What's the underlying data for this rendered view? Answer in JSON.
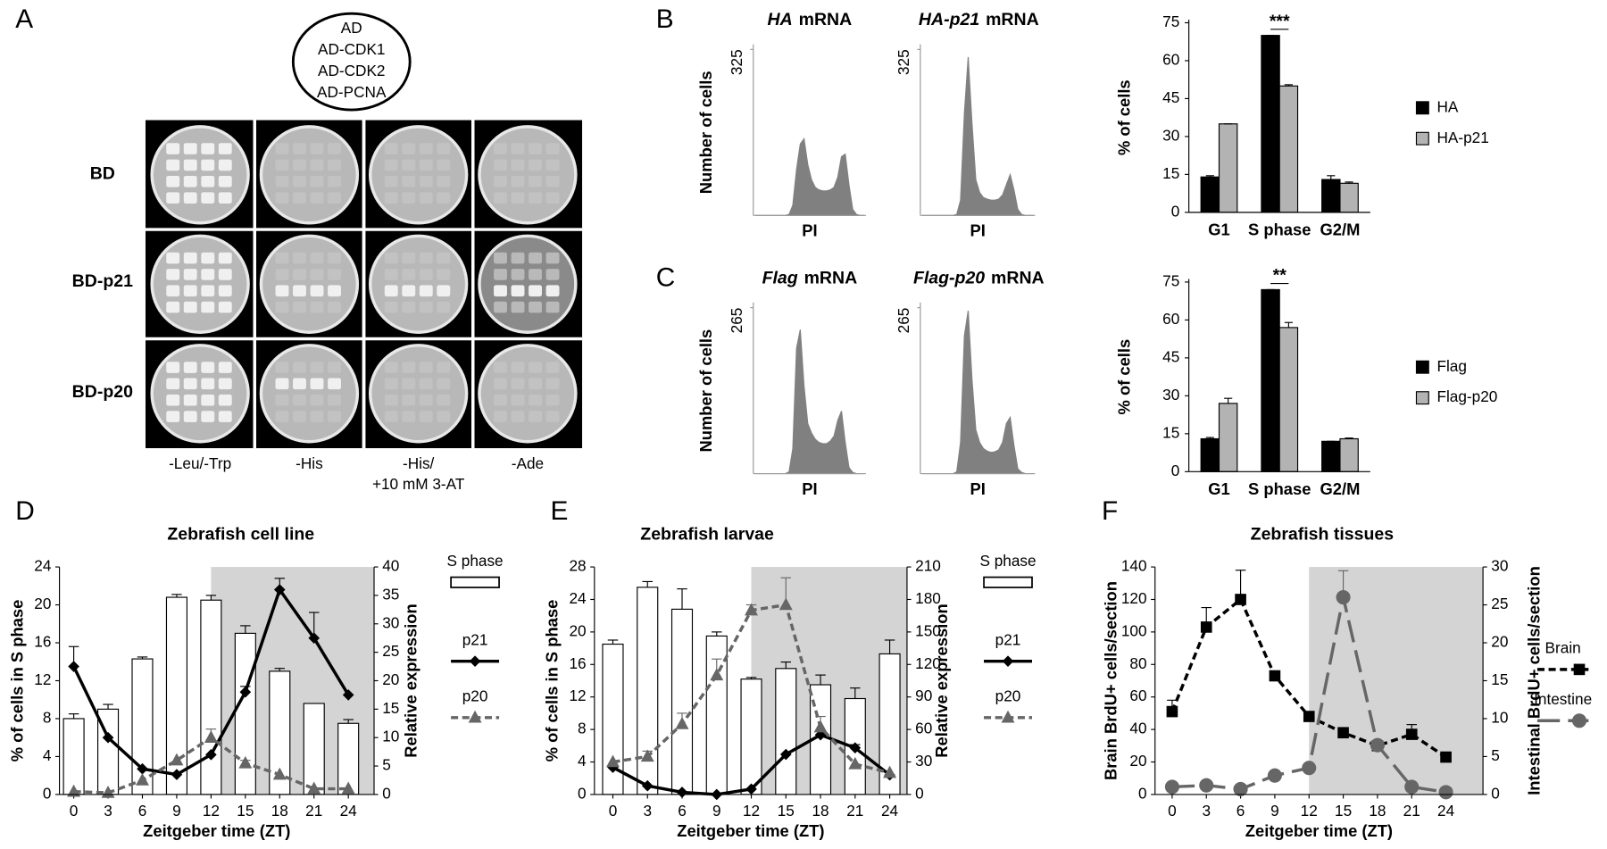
{
  "panel_labels": [
    "A",
    "B",
    "C",
    "D",
    "E",
    "F"
  ],
  "panel_a": {
    "ad_legend": [
      "AD",
      "AD-CDK1",
      "AD-CDK2",
      "AD-PCNA"
    ],
    "rows": [
      "BD",
      "BD-p21",
      "BD-p20"
    ],
    "columns": [
      [
        "-Leu/-Trp"
      ],
      [
        "-His"
      ],
      [
        "-His/",
        "+10 mM 3-AT"
      ],
      [
        "-Ade"
      ]
    ]
  },
  "chart_data": [
    {
      "type": "area",
      "title": [
        "HA",
        "mRNA"
      ],
      "ylabel": "Number of cells",
      "xlabel": "PI",
      "ylim": [
        0,
        325
      ],
      "yticks": [
        325
      ],
      "color": "#808080",
      "values": [
        0,
        0,
        0,
        0,
        0,
        0,
        0,
        0,
        0,
        2,
        20,
        90,
        140,
        150,
        100,
        70,
        55,
        50,
        48,
        48,
        50,
        55,
        75,
        115,
        120,
        60,
        12,
        2,
        0,
        0
      ]
    },
    {
      "type": "area",
      "title": [
        "HA-p21",
        "mRNA"
      ],
      "xlabel": "PI",
      "ylim": [
        0,
        325
      ],
      "yticks": [
        325
      ],
      "color": "#808080",
      "values": [
        0,
        0,
        0,
        0,
        0,
        0,
        0,
        0,
        0,
        2,
        30,
        200,
        310,
        180,
        70,
        45,
        35,
        32,
        30,
        30,
        32,
        40,
        60,
        80,
        50,
        12,
        2,
        0,
        0,
        0
      ]
    },
    {
      "type": "bar",
      "ylabel": "% of cells",
      "categories": [
        "G1",
        "S phase",
        "G2/M"
      ],
      "ylim": [
        0,
        75
      ],
      "yticks": [
        0,
        15,
        30,
        45,
        60,
        75
      ],
      "annotation": "***",
      "series": [
        {
          "name": "HA",
          "color": "#000000",
          "values": [
            14,
            70,
            13
          ],
          "errors": [
            0.5,
            0,
            1.5
          ]
        },
        {
          "name": "HA-p21",
          "color": "#b3b3b3",
          "values": [
            35,
            50,
            11.5
          ],
          "errors": [
            0,
            0.5,
            0.5
          ]
        }
      ]
    },
    {
      "type": "area",
      "title": [
        "Flag",
        "mRNA"
      ],
      "ylabel": "Number of cells",
      "xlabel": "PI",
      "ylim": [
        0,
        265
      ],
      "yticks": [
        265
      ],
      "color": "#808080",
      "values": [
        0,
        0,
        0,
        0,
        0,
        0,
        0,
        0,
        0,
        3,
        40,
        200,
        230,
        140,
        80,
        65,
        55,
        50,
        48,
        48,
        52,
        60,
        85,
        100,
        50,
        10,
        2,
        0,
        0,
        0
      ]
    },
    {
      "type": "area",
      "title": [
        "Flag-p20",
        "mRNA"
      ],
      "xlabel": "PI",
      "ylim": [
        0,
        265
      ],
      "yticks": [
        265
      ],
      "color": "#808080",
      "values": [
        0,
        0,
        0,
        0,
        0,
        0,
        0,
        0,
        0,
        3,
        50,
        220,
        260,
        150,
        70,
        50,
        40,
        36,
        34,
        35,
        38,
        50,
        80,
        90,
        45,
        8,
        2,
        0,
        0,
        0
      ]
    },
    {
      "type": "bar",
      "ylabel": "% of cells",
      "categories": [
        "G1",
        "S phase",
        "G2/M"
      ],
      "ylim": [
        0,
        75
      ],
      "yticks": [
        0,
        15,
        30,
        45,
        60,
        75
      ],
      "annotation": "**",
      "series": [
        {
          "name": "Flag",
          "color": "#000000",
          "values": [
            13,
            72,
            12
          ],
          "errors": [
            0.5,
            0,
            0
          ]
        },
        {
          "name": "Flag-p20",
          "color": "#b3b3b3",
          "values": [
            27,
            57,
            13
          ],
          "errors": [
            2,
            2,
            0.3
          ]
        }
      ]
    },
    {
      "type": "combo",
      "title": "Zebrafish cell line",
      "xlabel": "Zeitgeber time (ZT)",
      "ylabel": "% of cells in S phase",
      "y2label": "Relative expression",
      "x": [
        0,
        3,
        6,
        9,
        12,
        15,
        18,
        21,
        24
      ],
      "xlim": [
        -1.25,
        26.25
      ],
      "xticks": [
        0,
        3,
        6,
        9,
        12,
        15,
        18,
        21,
        24
      ],
      "ylim": [
        0,
        24
      ],
      "yticks": [
        0,
        4,
        8,
        12,
        16,
        20,
        24
      ],
      "y2lim": [
        0,
        40
      ],
      "y2ticks": [
        0,
        5,
        10,
        15,
        20,
        25,
        30,
        35,
        40
      ],
      "shaded_from": 12,
      "series": [
        {
          "name": "S phase",
          "kind": "bar",
          "color": "#ffffff",
          "values": [
            8,
            9,
            14.3,
            20.8,
            20.5,
            17,
            13,
            9.6,
            7.5
          ],
          "errors": [
            0.5,
            0.5,
            0.2,
            0.3,
            0.5,
            0.8,
            0.3,
            0,
            0.4
          ]
        },
        {
          "name": "p21",
          "kind": "line",
          "axis": "y2",
          "color": "#000000",
          "marker": "diamond",
          "dash": "solid",
          "values": [
            22.5,
            10,
            4.5,
            3.5,
            7,
            18,
            36,
            27.5,
            17.5
          ],
          "errors": [
            3.5,
            0,
            0,
            0,
            0,
            1,
            2,
            4.5,
            0
          ]
        },
        {
          "name": "p20",
          "kind": "line",
          "axis": "y2",
          "color": "#666666",
          "marker": "triangle",
          "dash": "dashed",
          "values": [
            0.5,
            0.3,
            2.5,
            6,
            10,
            5.5,
            3.5,
            1,
            1
          ],
          "errors": [
            0,
            0,
            0,
            0,
            1.5,
            0.5,
            0,
            0,
            0
          ]
        }
      ]
    },
    {
      "type": "combo",
      "title": "Zebrafish larvae",
      "xlabel": "Zeitgeber time (ZT)",
      "ylabel": "% of cells in S phase",
      "y2label": "Relative expression",
      "x": [
        0,
        3,
        6,
        9,
        12,
        15,
        18,
        21,
        24
      ],
      "xlim": [
        -1.6,
        25.5
      ],
      "xticks": [
        0,
        3,
        6,
        9,
        12,
        15,
        18,
        21,
        24
      ],
      "ylim": [
        0,
        28
      ],
      "yticks": [
        0,
        4,
        8,
        12,
        16,
        20,
        24,
        28
      ],
      "y2lim": [
        0,
        210
      ],
      "y2ticks": [
        0,
        30,
        60,
        90,
        120,
        150,
        180,
        210
      ],
      "shaded_from": 12,
      "series": [
        {
          "name": "S phase",
          "kind": "bar",
          "color": "#ffffff",
          "values": [
            18.5,
            25.5,
            22.8,
            19.5,
            14.2,
            15.5,
            13.5,
            11.8,
            17.3
          ],
          "errors": [
            0.5,
            0.7,
            2.5,
            0.5,
            0.2,
            0.8,
            1.2,
            1.3,
            1.7
          ]
        },
        {
          "name": "p21",
          "kind": "line",
          "axis": "y2",
          "color": "#000000",
          "marker": "diamond",
          "dash": "solid",
          "values": [
            25,
            8,
            2,
            0,
            5,
            37,
            55,
            43,
            18
          ],
          "errors": [
            0,
            0,
            0,
            0,
            0,
            0,
            0,
            3,
            0
          ]
        },
        {
          "name": "p20",
          "kind": "line",
          "axis": "y2",
          "color": "#666666",
          "marker": "triangle",
          "dash": "dashed",
          "values": [
            30,
            35,
            65,
            110,
            170,
            175,
            62,
            28,
            20
          ],
          "errors": [
            0,
            5,
            10,
            15,
            5,
            25,
            10,
            0,
            0
          ]
        }
      ]
    },
    {
      "type": "combo",
      "title": "Zebrafish tissues",
      "xlabel": "Zeitgeber time (ZT)",
      "ylabel": "Brain BrdU+ cells/section",
      "y2label": "Intestinal BrdU+ cells/section",
      "x": [
        0,
        3,
        6,
        9,
        12,
        15,
        18,
        21,
        24
      ],
      "xlim": [
        -1.5,
        27.25
      ],
      "xticks": [
        0,
        3,
        6,
        9,
        12,
        15,
        18,
        21,
        24
      ],
      "ylim": [
        0,
        140
      ],
      "yticks": [
        0,
        20,
        40,
        60,
        80,
        100,
        120,
        140
      ],
      "y2lim": [
        0,
        30
      ],
      "y2ticks": [
        0,
        5,
        10,
        15,
        20,
        25,
        30
      ],
      "shaded_from": 12,
      "series": [
        {
          "name": "Brain",
          "kind": "line",
          "axis": "y",
          "color": "#000000",
          "marker": "square",
          "dash": "dashed",
          "values": [
            51,
            103,
            120,
            73,
            48,
            38,
            30,
            37,
            23
          ],
          "errors": [
            7,
            12,
            18,
            0,
            0,
            0,
            0,
            6,
            0
          ]
        },
        {
          "name": "Intestine",
          "kind": "line",
          "axis": "y2",
          "color": "#666666",
          "marker": "circle",
          "dash": "long",
          "values": [
            1,
            1.2,
            0.7,
            2.5,
            3.5,
            26,
            6.5,
            1,
            0.3
          ],
          "errors": [
            0,
            0,
            0,
            0,
            0,
            3.5,
            0,
            0,
            0
          ]
        }
      ]
    }
  ]
}
